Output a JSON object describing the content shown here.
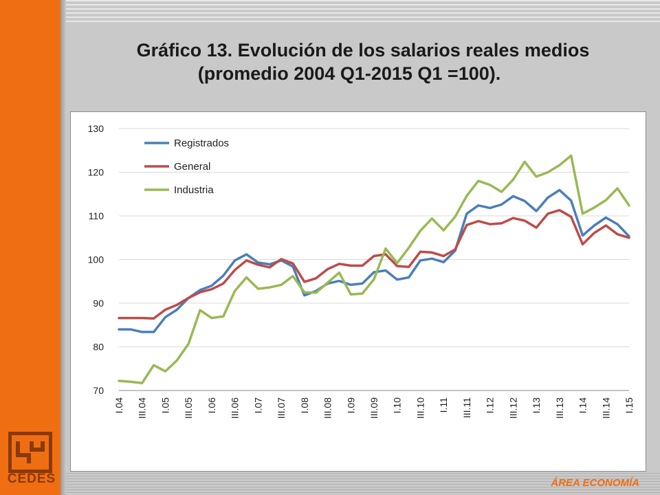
{
  "slide": {
    "title_line1": "Gráfico 13. Evolución de los salarios reales medios",
    "title_line2": "(promedio 2004 Q1-2015 Q1 =100).",
    "logo_text": "CEDES",
    "footer_text": "ÁREA ECONOMÍA",
    "accent_color": "#f06e12"
  },
  "chart_data": {
    "type": "line",
    "title": "",
    "xlabel": "",
    "ylabel": "",
    "ylim": [
      70,
      130
    ],
    "yticks": [
      70,
      80,
      90,
      100,
      110,
      120,
      130
    ],
    "grid": true,
    "legend_position": "top-left",
    "x": [
      "I.04",
      "II.04",
      "III.04",
      "IV.04",
      "I.05",
      "II.05",
      "III.05",
      "IV.05",
      "I.06",
      "II.06",
      "III.06",
      "IV.06",
      "I.07",
      "II.07",
      "III.07",
      "IV.07",
      "I.08",
      "II.08",
      "III.08",
      "IV.08",
      "I.09",
      "II.09",
      "III.09",
      "IV.09",
      "I.10",
      "II.10",
      "III.10",
      "IV.10",
      "I.11",
      "II.11",
      "III.11",
      "IV.11",
      "I.12",
      "II.12",
      "III.12",
      "IV.12",
      "I.13",
      "II.13",
      "III.13",
      "IV.13",
      "I.14",
      "II.14",
      "III.14",
      "IV.14",
      "I.15"
    ],
    "x_tick_labels": [
      "I.04",
      "III.04",
      "I.05",
      "III.05",
      "I.06",
      "III.06",
      "I.07",
      "III.07",
      "I.08",
      "III.08",
      "I.09",
      "III.09",
      "I.10",
      "III.10",
      "I.11",
      "III.11",
      "I.12",
      "III.12",
      "I.13",
      "III.13",
      "I.14",
      "III.14",
      "I.15"
    ],
    "series": [
      {
        "name": "Registrados",
        "color": "#4a7ebb",
        "values": [
          84.0,
          84.0,
          83.4,
          83.4,
          86.8,
          88.5,
          91.2,
          93.0,
          94.0,
          96.3,
          99.8,
          101.2,
          99.3,
          98.9,
          99.8,
          98.4,
          91.8,
          92.8,
          94.5,
          95.1,
          94.2,
          94.5,
          97.1,
          97.5,
          95.4,
          95.9,
          99.8,
          100.2,
          99.4,
          102.0,
          110.5,
          112.4,
          111.8,
          112.6,
          114.5,
          113.4,
          111.1,
          114.2,
          115.9,
          113.5,
          105.5,
          107.8,
          109.6,
          108.1,
          105.3
        ],
        "legend_label": "Registrados"
      },
      {
        "name": "General",
        "color": "#be4b48",
        "values": [
          86.6,
          86.6,
          86.6,
          86.5,
          88.5,
          89.6,
          91.2,
          92.5,
          93.2,
          94.5,
          97.6,
          99.8,
          98.8,
          98.2,
          100.1,
          99.1,
          94.9,
          95.7,
          97.8,
          99.0,
          98.6,
          98.6,
          100.8,
          101.2,
          98.5,
          98.3,
          101.8,
          101.6,
          100.8,
          102.3,
          107.9,
          108.8,
          108.1,
          108.3,
          109.5,
          108.9,
          107.3,
          110.5,
          111.3,
          109.8,
          103.5,
          106.1,
          107.8,
          105.8,
          105.0
        ],
        "legend_label": "General"
      },
      {
        "name": "Industria",
        "color": "#98b954",
        "values": [
          72.2,
          72.0,
          71.7,
          75.8,
          74.4,
          76.9,
          80.7,
          88.4,
          86.6,
          87.0,
          92.8,
          95.9,
          93.3,
          93.6,
          94.2,
          96.2,
          92.5,
          92.4,
          94.7,
          97.0,
          92.0,
          92.2,
          95.5,
          102.5,
          99.2,
          102.7,
          106.6,
          109.4,
          106.7,
          109.8,
          114.6,
          118.0,
          117.1,
          115.5,
          118.3,
          122.4,
          119.0,
          120.0,
          121.6,
          123.8,
          110.5,
          111.9,
          113.6,
          116.3,
          112.4
        ],
        "legend_label": "Industria"
      }
    ]
  }
}
